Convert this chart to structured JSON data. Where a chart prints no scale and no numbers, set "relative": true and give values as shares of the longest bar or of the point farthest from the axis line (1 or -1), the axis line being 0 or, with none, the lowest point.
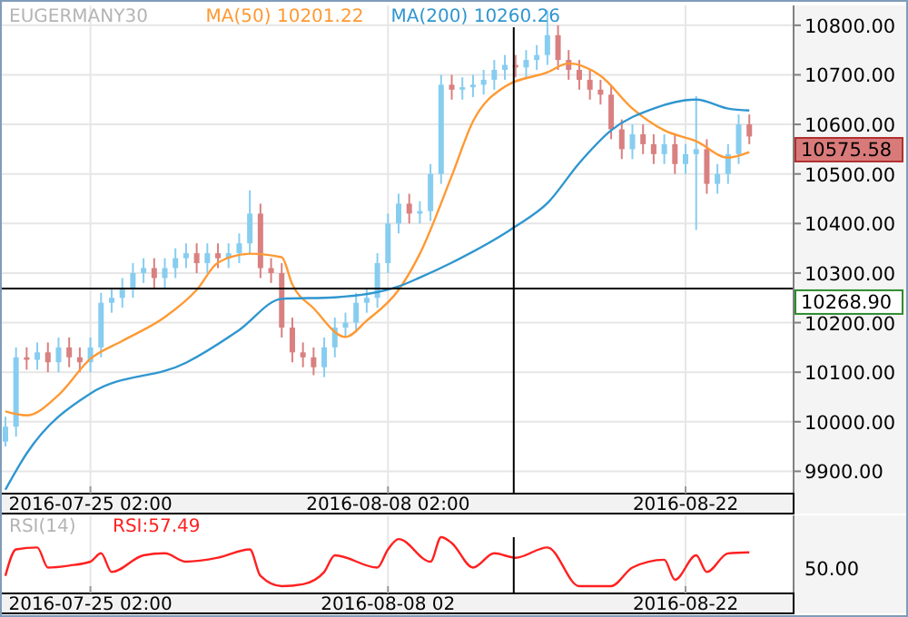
{
  "chart_data": [
    {
      "type": "candlestick",
      "title": "EUGERMANY30",
      "legend": "top",
      "grid": true,
      "xlim": [
        "2016-07-21T00:00",
        "2016-08-27T04:00"
      ],
      "xticks": [
        {
          "value": "2016-07-25T02:00",
          "label": "2016-07-25 02:00"
        },
        {
          "value": "2016-08-08T02:00",
          "label": "2016-08-08 02:00"
        },
        {
          "value": "2016-08-22T02:00",
          "label": "2016-08-22"
        }
      ],
      "ylim": [
        9855,
        10840
      ],
      "yticks": [
        {
          "value": 9900,
          "label": "9900.00"
        },
        {
          "value": 10000,
          "label": "10000.00"
        },
        {
          "value": 10100,
          "label": "10100.00"
        },
        {
          "value": 10200,
          "label": "10200.00"
        },
        {
          "value": 10300,
          "label": "10300.00"
        },
        {
          "value": 10400,
          "label": "10400.00"
        },
        {
          "value": 10500,
          "label": "10500.00"
        },
        {
          "value": 10600,
          "label": "10600.00"
        },
        {
          "value": 10700,
          "label": "10700.00"
        },
        {
          "value": 10800,
          "label": "10800.00"
        }
      ],
      "x": [
        "2016-07-21T02:00",
        "2016-07-21T14:00",
        "2016-07-22T02:00",
        "2016-07-22T14:00",
        "2016-07-23T02:00",
        "2016-07-23T14:00",
        "2016-07-24T02:00",
        "2016-07-24T14:00",
        "2016-07-25T02:00",
        "2016-07-25T14:00",
        "2016-07-26T02:00",
        "2016-07-26T14:00",
        "2016-07-27T02:00",
        "2016-07-27T14:00",
        "2016-07-28T02:00",
        "2016-07-28T14:00",
        "2016-07-29T02:00",
        "2016-07-29T14:00",
        "2016-07-30T02:00",
        "2016-07-30T14:00",
        "2016-07-31T02:00",
        "2016-07-31T14:00",
        "2016-08-01T02:00",
        "2016-08-01T14:00",
        "2016-08-02T02:00",
        "2016-08-02T14:00",
        "2016-08-03T02:00",
        "2016-08-03T14:00",
        "2016-08-04T02:00",
        "2016-08-04T14:00",
        "2016-08-05T02:00",
        "2016-08-05T14:00",
        "2016-08-06T02:00",
        "2016-08-06T14:00",
        "2016-08-07T02:00",
        "2016-08-07T14:00",
        "2016-08-08T02:00",
        "2016-08-08T14:00",
        "2016-08-09T02:00",
        "2016-08-09T14:00",
        "2016-08-10T02:00",
        "2016-08-10T14:00",
        "2016-08-11T02:00",
        "2016-08-11T14:00",
        "2016-08-12T02:00",
        "2016-08-12T14:00",
        "2016-08-13T02:00",
        "2016-08-13T14:00",
        "2016-08-14T02:00",
        "2016-08-14T14:00",
        "2016-08-15T02:00",
        "2016-08-15T14:00",
        "2016-08-16T02:00",
        "2016-08-16T14:00",
        "2016-08-17T02:00",
        "2016-08-17T14:00",
        "2016-08-18T02:00",
        "2016-08-18T14:00",
        "2016-08-19T02:00",
        "2016-08-19T14:00",
        "2016-08-20T02:00",
        "2016-08-20T14:00",
        "2016-08-21T02:00",
        "2016-08-21T14:00",
        "2016-08-22T02:00",
        "2016-08-22T14:00",
        "2016-08-23T02:00",
        "2016-08-23T14:00",
        "2016-08-24T02:00",
        "2016-08-24T14:00",
        "2016-08-25T02:00"
      ],
      "series": [
        {
          "colors": [
            "#87cdf0",
            "#87cdf0",
            "#d98080",
            "#87cdf0",
            "#d98080",
            "#87cdf0",
            "#d98080",
            "#d98080",
            "#87cdf0",
            "#87cdf0",
            "#87cdf0",
            "#87cdf0",
            "#87cdf0",
            "#87cdf0",
            "#d98080",
            "#87cdf0",
            "#87cdf0",
            "#87cdf0",
            "#d98080",
            "#87cdf0",
            "#d98080",
            "#87cdf0",
            "#87cdf0",
            "#87cdf0",
            "#d98080",
            "#d98080",
            "#d98080",
            "#d98080",
            "#d98080",
            "#d98080",
            "#87cdf0",
            "#87cdf0",
            "#87cdf0",
            "#87cdf0",
            "#87cdf0",
            "#87cdf0",
            "#87cdf0",
            "#87cdf0",
            "#d98080",
            "#87cdf0",
            "#87cdf0",
            "#87cdf0",
            "#d98080",
            "#87cdf0",
            "#87cdf0",
            "#87cdf0",
            "#87cdf0",
            "#87cdf0",
            "#d98080",
            "#87cdf0",
            "#87cdf0",
            "#87cdf0",
            "#d98080",
            "#d98080",
            "#d98080",
            "#d98080",
            "#d98080",
            "#d98080",
            "#d98080",
            "#87cdf0",
            "#d98080",
            "#d98080",
            "#87cdf0",
            "#d98080",
            "#87cdf0",
            "#87cdf0",
            "#d98080",
            "#87cdf0",
            "#87cdf0",
            "#87cdf0",
            "#d98080"
          ],
          "ohlc": [
            [
              9960,
              10010,
              9950,
              9990
            ],
            [
              9990,
              10150,
              9970,
              10130
            ],
            [
              10130,
              10150,
              10105,
              10125
            ],
            [
              10125,
              10160,
              10105,
              10140
            ],
            [
              10140,
              10160,
              10100,
              10120
            ],
            [
              10120,
              10170,
              10100,
              10150
            ],
            [
              10150,
              10170,
              10110,
              10130
            ],
            [
              10130,
              10150,
              10100,
              10120
            ],
            [
              10120,
              10170,
              10100,
              10150
            ],
            [
              10150,
              10260,
              10130,
              10240
            ],
            [
              10240,
              10270,
              10220,
              10250
            ],
            [
              10250,
              10290,
              10230,
              10270
            ],
            [
              10270,
              10320,
              10250,
              10300
            ],
            [
              10300,
              10330,
              10280,
              10310
            ],
            [
              10310,
              10330,
              10270,
              10290
            ],
            [
              10290,
              10330,
              10270,
              10310
            ],
            [
              10310,
              10350,
              10290,
              10330
            ],
            [
              10330,
              10360,
              10310,
              10340
            ],
            [
              10340,
              10360,
              10300,
              10320
            ],
            [
              10320,
              10360,
              10300,
              10340
            ],
            [
              10340,
              10360,
              10310,
              10330
            ],
            [
              10330,
              10360,
              10310,
              10340
            ],
            [
              10340,
              10380,
              10320,
              10360
            ],
            [
              10360,
              10467,
              10340,
              10420
            ],
            [
              10420,
              10440,
              10290,
              10310
            ],
            [
              10310,
              10330,
              10280,
              10300
            ],
            [
              10300,
              10320,
              10170,
              10190
            ],
            [
              10190,
              10210,
              10120,
              10140
            ],
            [
              10140,
              10160,
              10110,
              10130
            ],
            [
              10130,
              10150,
              10094,
              10110
            ],
            [
              10110,
              10170,
              10090,
              10150
            ],
            [
              10150,
              10210,
              10130,
              10190
            ],
            [
              10190,
              10220,
              10170,
              10200
            ],
            [
              10200,
              10260,
              10180,
              10240
            ],
            [
              10240,
              10270,
              10220,
              10250
            ],
            [
              10250,
              10340,
              10230,
              10320
            ],
            [
              10320,
              10420,
              10300,
              10400
            ],
            [
              10400,
              10460,
              10380,
              10440
            ],
            [
              10440,
              10460,
              10400,
              10420
            ],
            [
              10420,
              10445,
              10400,
              10425
            ],
            [
              10425,
              10520,
              10405,
              10500
            ],
            [
              10500,
              10700,
              10480,
              10680
            ],
            [
              10680,
              10700,
              10650,
              10670
            ],
            [
              10670,
              10695,
              10650,
              10675
            ],
            [
              10675,
              10700,
              10655,
              10680
            ],
            [
              10680,
              10710,
              10660,
              10690
            ],
            [
              10690,
              10730,
              10670,
              10710
            ],
            [
              10710,
              10740,
              10690,
              10720
            ],
            [
              10720,
              10740,
              10695,
              10715
            ],
            [
              10715,
              10750,
              10695,
              10730
            ],
            [
              10730,
              10760,
              10710,
              10740
            ],
            [
              10740,
              10830,
              10720,
              10780
            ],
            [
              10780,
              10800,
              10710,
              10730
            ],
            [
              10730,
              10750,
              10690,
              10710
            ],
            [
              10710,
              10730,
              10670,
              10690
            ],
            [
              10690,
              10710,
              10650,
              10670
            ],
            [
              10670,
              10690,
              10640,
              10660
            ],
            [
              10660,
              10680,
              10570,
              10590
            ],
            [
              10590,
              10610,
              10530,
              10550
            ],
            [
              10550,
              10600,
              10530,
              10580
            ],
            [
              10580,
              10600,
              10540,
              10560
            ],
            [
              10560,
              10580,
              10520,
              10540
            ],
            [
              10540,
              10580,
              10520,
              10560
            ],
            [
              10560,
              10580,
              10500,
              10520
            ],
            [
              10520,
              10560,
              10500,
              10540
            ],
            [
              10540,
              10657,
              10387,
              10550
            ],
            [
              10550,
              10570,
              10460,
              10480
            ],
            [
              10480,
              10520,
              10460,
              10500
            ],
            [
              10500,
              10560,
              10480,
              10540
            ],
            [
              10540,
              10620,
              10520,
              10600
            ],
            [
              10600,
              10620,
              10560,
              10575.58
            ]
          ]
        },
        {
          "type": "line",
          "name": "MA(50) 10201.22",
          "color": "#ff9933",
          "x": [
            "2016-07-21T02:00",
            "2016-07-22T02:00",
            "2016-07-23T14:00",
            "2016-07-25T02:00",
            "2016-07-26T14:00",
            "2016-07-28T14:00",
            "2016-07-30T02:00",
            "2016-07-31T02:00",
            "2016-08-01T14:00",
            "2016-08-03T02:00",
            "2016-08-03T14:00",
            "2016-08-04T14:00",
            "2016-08-06T02:00",
            "2016-08-07T02:00",
            "2016-08-08T14:00",
            "2016-08-09T14:00",
            "2016-08-11T02:00",
            "2016-08-12T02:00",
            "2016-08-13T14:00",
            "2016-08-15T14:00",
            "2016-08-16T14:00",
            "2016-08-18T02:00",
            "2016-08-19T14:00",
            "2016-08-21T02:00",
            "2016-08-22T14:00",
            "2016-08-24T02:00",
            "2016-08-25T02:00"
          ],
          "values": [
            10021,
            10013,
            10054,
            10127,
            10163,
            10211,
            10266,
            10321,
            10339,
            10332,
            10277,
            10229,
            10171,
            10204,
            10266,
            10339,
            10496,
            10606,
            10676,
            10705,
            10723,
            10698,
            10632,
            10588,
            10566,
            10533,
            10544
          ]
        },
        {
          "type": "line",
          "name": "MA(200) 10260.26",
          "color": "#2f96d0",
          "x": [
            "2016-07-21T02:00",
            "2016-07-22T02:00",
            "2016-07-25T02:00",
            "2016-07-29T14:00",
            "2016-08-01T02:00",
            "2016-08-03T02:00",
            "2016-08-05T14:00",
            "2016-08-08T14:00",
            "2016-08-09T14:00",
            "2016-08-11T02:00",
            "2016-08-14T02:00",
            "2016-08-15T14:00",
            "2016-08-17T02:00",
            "2016-08-18T14:00",
            "2016-08-20T14:00",
            "2016-08-22T14:00",
            "2016-08-24T02:00",
            "2016-08-25T02:00"
          ],
          "values": [
            9863,
            9936,
            10057,
            10119,
            10185,
            10248,
            10251,
            10273,
            10291,
            10321,
            10394,
            10441,
            10522,
            10588,
            10632,
            10650,
            10632,
            10628
          ]
        }
      ],
      "ref_lines": [
        {
          "axis": "y",
          "value": 10268.9,
          "label": "10268.90",
          "color": "#000000"
        },
        {
          "axis": "x",
          "value": "2016-08-14T00:00",
          "color": "#000000"
        }
      ],
      "annotations": [
        "10575.58"
      ]
    },
    {
      "type": "line",
      "title": "RSI(14)",
      "legend": "top left",
      "grid": "x",
      "xlim": [
        "2016-07-21T00:00",
        "2016-08-27T04:00"
      ],
      "xticks": [
        {
          "value": "2016-07-25T02:00",
          "label": "2016-07-25 02:00"
        },
        {
          "value": "2016-08-08T02:00",
          "label": "2016-08-08 02"
        },
        {
          "value": "2016-08-22T02:00",
          "label": "2016-08-22"
        }
      ],
      "relative": true,
      "annotations": [
        "50.00"
      ],
      "series": [
        {
          "name": "RSI:57.49",
          "color": "#ff2020",
          "x": [
            "2016-07-21T02:00",
            "2016-07-21T14:00",
            "2016-07-22T14:00",
            "2016-07-23T02:00",
            "2016-07-24T02:00",
            "2016-07-25T02:00",
            "2016-07-25T14:00",
            "2016-07-26T02:00",
            "2016-07-27T14:00",
            "2016-07-28T14:00",
            "2016-07-29T14:00",
            "2016-07-31T02:00",
            "2016-08-01T14:00",
            "2016-08-02T02:00",
            "2016-08-03T02:00",
            "2016-08-04T02:00",
            "2016-08-05T02:00",
            "2016-08-05T14:00",
            "2016-08-07T14:00",
            "2016-08-08T02:00",
            "2016-08-08T14:00",
            "2016-08-10T02:00",
            "2016-08-10T14:00",
            "2016-08-11T02:00",
            "2016-08-12T02:00",
            "2016-08-13T02:00",
            "2016-08-14T02:00",
            "2016-08-15T14:00",
            "2016-08-17T02:00",
            "2016-08-18T14:00",
            "2016-08-19T14:00",
            "2016-08-21T02:00",
            "2016-08-21T14:00",
            "2016-08-22T14:00",
            "2016-08-23T02:00",
            "2016-08-24T02:00",
            "2016-08-25T02:00"
          ],
          "values": [
            0.21,
            0.75,
            0.79,
            0.38,
            0.42,
            0.5,
            0.67,
            0.29,
            0.63,
            0.67,
            0.5,
            0.58,
            0.75,
            0.21,
            0,
            0.04,
            0.29,
            0.63,
            0.38,
            0.75,
            0.96,
            0.5,
            1,
            0.88,
            0.38,
            0.67,
            0.58,
            0.79,
            0,
            0,
            0.38,
            0.54,
            0.13,
            0.63,
            0.29,
            0.67,
            0.69
          ]
        }
      ],
      "ref_lines": [
        {
          "axis": "x",
          "value": "2016-08-14T00:00",
          "color": "#000000"
        }
      ]
    }
  ]
}
